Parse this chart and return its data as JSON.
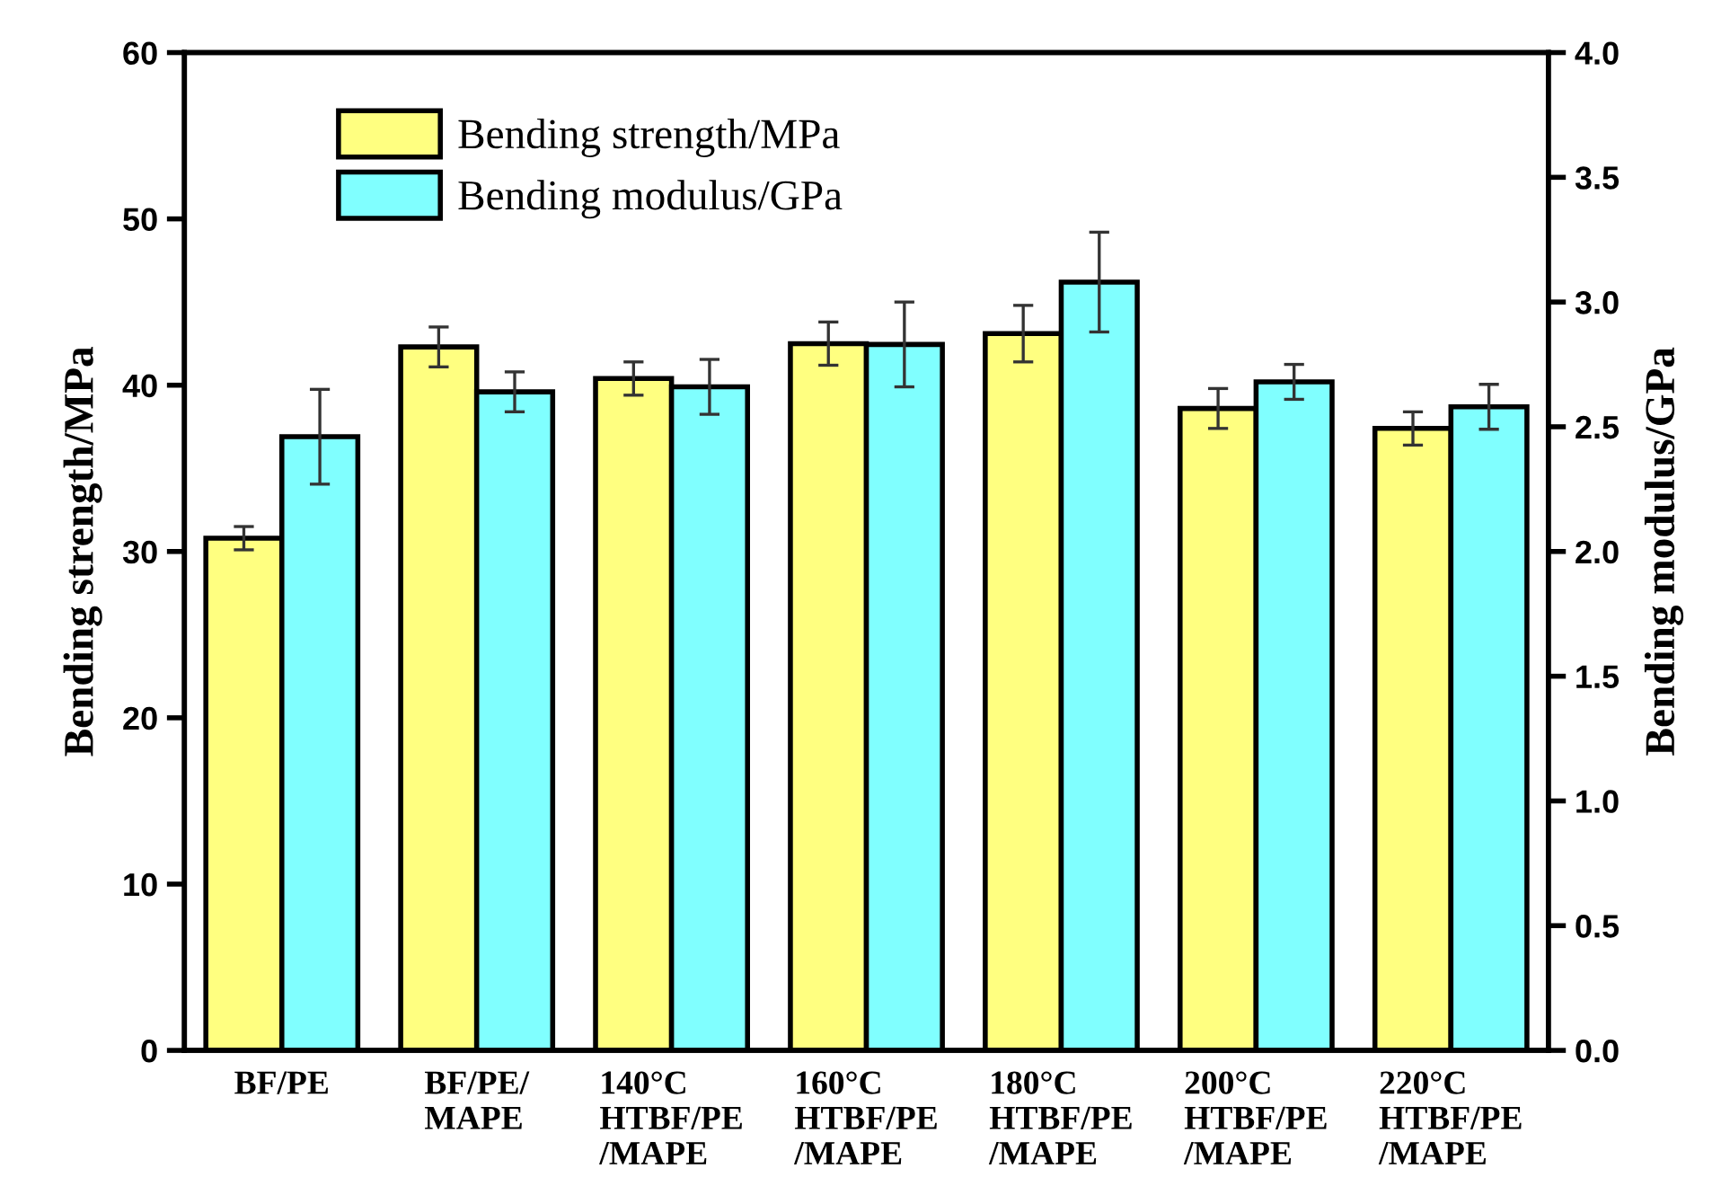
{
  "chart_data": {
    "type": "bar",
    "categories": [
      "BF/PE",
      "BF/PE/\nMAPE",
      "140°C\nHTBF/PE\n/MAPE",
      "160°C\nHTBF/PE\n/MAPE",
      "180°C\nHTBF/PE\n/MAPE",
      "200°C\nHTBF/PE\n/MAPE",
      "220°C\nHTBF/PE\n/MAPE"
    ],
    "series": [
      {
        "name": "Bending strength/MPa",
        "color": "#ffff80",
        "values": [
          30.8,
          42.3,
          40.4,
          42.5,
          43.1,
          38.6,
          37.4
        ],
        "errors": [
          0.7,
          1.2,
          1.0,
          1.3,
          1.7,
          1.2,
          1.0
        ]
      },
      {
        "name": "Bending modulus/GPa",
        "color": "#80ffff",
        "axis": "y2",
        "values": [
          2.46,
          2.64,
          2.66,
          2.83,
          3.08,
          2.68,
          2.58
        ],
        "errors": [
          0.19,
          0.08,
          0.11,
          0.17,
          0.2,
          0.07,
          0.09
        ]
      }
    ],
    "ylabel": "Bending strength/MPa",
    "y2label": "Bending modulus/GPa",
    "ylim": [
      0,
      60
    ],
    "yticks": [
      0,
      10,
      20,
      30,
      40,
      50,
      60
    ],
    "y2lim": [
      0,
      4
    ],
    "y2ticks": [
      {
        "value": 0,
        "label": "0.0"
      },
      {
        "value": 0.5,
        "label": "0.5"
      },
      {
        "value": 1,
        "label": "1.0"
      },
      {
        "value": 1.5,
        "label": "1.5"
      },
      {
        "value": 2,
        "label": "2.0"
      },
      {
        "value": 2.5,
        "label": "2.5"
      },
      {
        "value": 3,
        "label": "3.0"
      },
      {
        "value": 3.5,
        "label": "3.5"
      },
      {
        "value": 4,
        "label": "4.0"
      }
    ],
    "legend": "top left",
    "grid": false
  }
}
